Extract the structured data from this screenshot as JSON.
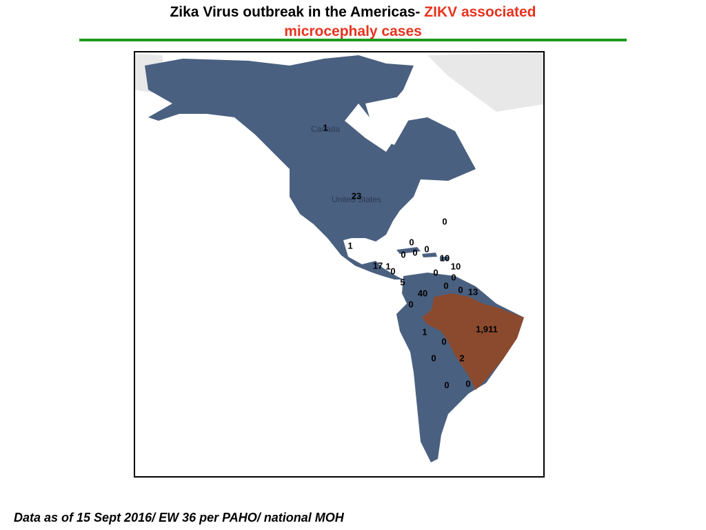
{
  "header": {
    "title": "Zika Virus outbreak in the Americas-",
    "highlight": "ZIKV associated microcephaly cases"
  },
  "map": {
    "place_names": [
      "Canada",
      "United States"
    ],
    "case_counts": [
      "1",
      "23",
      "0",
      "0",
      "0",
      "0",
      "0",
      "10",
      "10",
      "1",
      "17",
      "1",
      "0",
      "0",
      "0",
      "5",
      "0",
      "0",
      "13",
      "40",
      "0",
      "1,911",
      "1",
      "0",
      "0",
      "2",
      "0",
      "0"
    ]
  },
  "footer": "Data as of 15 Sept 2016/ EW 36 per PAHO/ national MOH"
}
